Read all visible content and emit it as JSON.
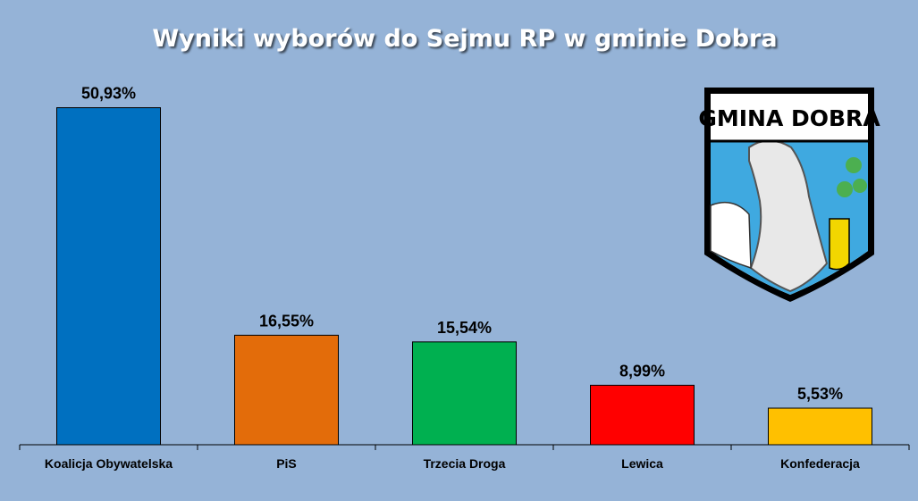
{
  "chart_data": {
    "type": "bar",
    "title": "Wyniki wyborów do Sejmu RP w gminie Dobra",
    "categories": [
      "Koalicja Obywatelska",
      "PiS",
      "Trzecia Droga",
      "Lewica",
      "Konfederacja"
    ],
    "values": [
      50.93,
      16.55,
      15.54,
      8.99,
      5.53
    ],
    "value_labels": [
      "50,93%",
      "16,55%",
      "15,54%",
      "8,99%",
      "5,53%"
    ],
    "colors": [
      "#0070c0",
      "#e36c0a",
      "#00b050",
      "#ff0000",
      "#ffc000"
    ]
  },
  "logo_text": "GMINA DOBRA"
}
